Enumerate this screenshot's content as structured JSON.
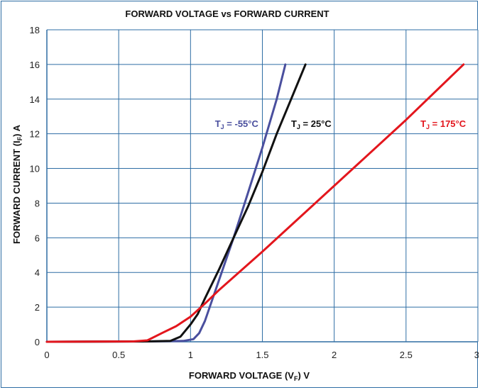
{
  "chart_data": {
    "type": "line",
    "title": "FORWARD VOLTAGE vs FORWARD CURRENT",
    "xlabel": {
      "prefix": "FORWARD VOLTAGE (V",
      "sub": "F",
      "suffix": ") V"
    },
    "ylabel": {
      "prefix": "FORWARD CURRENT (I",
      "sub": "F",
      "suffix": ") A"
    },
    "xlim": [
      0,
      3
    ],
    "ylim": [
      0,
      18
    ],
    "x_ticks": [
      0,
      0.5,
      1,
      1.5,
      2,
      2.5,
      3
    ],
    "x_tick_labels": [
      "0",
      "0.5",
      "1",
      "1.5",
      "2",
      "2.5",
      "3"
    ],
    "y_ticks": [
      0,
      2,
      4,
      6,
      8,
      10,
      12,
      14,
      16,
      18
    ],
    "y_tick_labels": [
      "0",
      "2",
      "4",
      "6",
      "8",
      "10",
      "12",
      "14",
      "16",
      "18"
    ],
    "grid": true,
    "series": [
      {
        "label": {
          "prefix": "T",
          "sub": "J",
          "suffix": " =  -55°C"
        },
        "color": "#4a4f9e",
        "points": [
          [
            0,
            0
          ],
          [
            0.7,
            0.02
          ],
          [
            0.95,
            0.05
          ],
          [
            1.02,
            0.15
          ],
          [
            1.06,
            0.5
          ],
          [
            1.1,
            1.2
          ],
          [
            1.15,
            2.4
          ],
          [
            1.2,
            3.6
          ],
          [
            1.3,
            6.0
          ],
          [
            1.4,
            8.6
          ],
          [
            1.5,
            11.2
          ],
          [
            1.6,
            14.0
          ],
          [
            1.66,
            16.0
          ]
        ]
      },
      {
        "label": {
          "prefix": "T",
          "sub": "J",
          "suffix": " =  25°C"
        },
        "color": "#111111",
        "points": [
          [
            0,
            0
          ],
          [
            0.7,
            0.02
          ],
          [
            0.86,
            0.05
          ],
          [
            0.93,
            0.3
          ],
          [
            1.0,
            1.0
          ],
          [
            1.05,
            1.6
          ],
          [
            1.1,
            2.5
          ],
          [
            1.2,
            4.2
          ],
          [
            1.3,
            6.0
          ],
          [
            1.4,
            7.8
          ],
          [
            1.5,
            9.8
          ],
          [
            1.6,
            12.0
          ],
          [
            1.7,
            14.0
          ],
          [
            1.8,
            16.0
          ]
        ]
      },
      {
        "label": {
          "prefix": "T",
          "sub": "J",
          "suffix": " =  175°C"
        },
        "color": "#e3161d",
        "points": [
          [
            0,
            0
          ],
          [
            0.6,
            0.02
          ],
          [
            0.7,
            0.08
          ],
          [
            0.8,
            0.5
          ],
          [
            0.9,
            0.9
          ],
          [
            1.0,
            1.45
          ],
          [
            1.1,
            2.2
          ],
          [
            1.2,
            3.0
          ],
          [
            1.5,
            5.2
          ],
          [
            2.0,
            9.0
          ],
          [
            2.5,
            12.8
          ],
          [
            2.9,
            16.0
          ]
        ]
      }
    ],
    "annotation_positions_data": [
      {
        "x": 1.17,
        "y": 12.4
      },
      {
        "x": 1.7,
        "y": 12.4
      },
      {
        "x": 2.6,
        "y": 12.4
      }
    ]
  }
}
